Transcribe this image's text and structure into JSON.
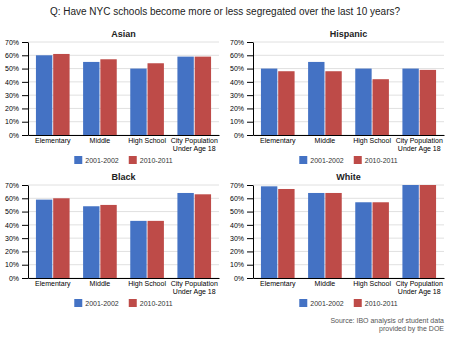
{
  "title": "Q: Have NYC schools become more or less segregated over the last 10 years?",
  "annotations": [
    "Source: IBO analysis of student data\nprovided by the DOE"
  ],
  "chart_data": [
    {
      "type": "bar",
      "title": "Asian",
      "categories": [
        "Elementary",
        "Middle",
        "High School",
        "City Population\nUnder Age 18"
      ],
      "series": [
        {
          "name": "2001-2002",
          "color": "#4472C4",
          "values": [
            60,
            55,
            50,
            59
          ]
        },
        {
          "name": "2010-2011",
          "color": "#BE4B48",
          "values": [
            61,
            57,
            54,
            59
          ]
        }
      ],
      "ylim": [
        0,
        70
      ],
      "yticks": [
        {
          "value": 0,
          "label": "0%"
        },
        {
          "value": 10,
          "label": "10%"
        },
        {
          "value": 20,
          "label": "20%"
        },
        {
          "value": 30,
          "label": "30%"
        },
        {
          "value": 40,
          "label": "40%"
        },
        {
          "value": 50,
          "label": "50%"
        },
        {
          "value": 60,
          "label": "60%"
        },
        {
          "value": 70,
          "label": "70%"
        }
      ],
      "grid": true,
      "legend": "bottom"
    },
    {
      "type": "bar",
      "title": "Hispanic",
      "categories": [
        "Elementary",
        "Middle",
        "High School",
        "City Population\nUnder Age 18"
      ],
      "series": [
        {
          "name": "2001-2002",
          "color": "#4472C4",
          "values": [
            50,
            55,
            50,
            50
          ]
        },
        {
          "name": "2010-2011",
          "color": "#BE4B48",
          "values": [
            48,
            48,
            42,
            49
          ]
        }
      ],
      "ylim": [
        0,
        70
      ],
      "yticks": [
        {
          "value": 0,
          "label": "0%"
        },
        {
          "value": 10,
          "label": "10%"
        },
        {
          "value": 20,
          "label": "20%"
        },
        {
          "value": 30,
          "label": "30%"
        },
        {
          "value": 40,
          "label": "40%"
        },
        {
          "value": 50,
          "label": "50%"
        },
        {
          "value": 60,
          "label": "60%"
        },
        {
          "value": 70,
          "label": "70%"
        }
      ],
      "grid": true,
      "legend": "bottom"
    },
    {
      "type": "bar",
      "title": "Black",
      "categories": [
        "Elementary",
        "Middle",
        "High School",
        "City Population\nUnder Age 18"
      ],
      "series": [
        {
          "name": "2001-2002",
          "color": "#4472C4",
          "values": [
            59,
            54,
            43,
            64
          ]
        },
        {
          "name": "2010-2011",
          "color": "#BE4B48",
          "values": [
            60,
            55,
            43,
            63
          ]
        }
      ],
      "ylim": [
        0,
        70
      ],
      "yticks": [
        {
          "value": 0,
          "label": "0%"
        },
        {
          "value": 10,
          "label": "10%"
        },
        {
          "value": 20,
          "label": "20%"
        },
        {
          "value": 30,
          "label": "30%"
        },
        {
          "value": 40,
          "label": "40%"
        },
        {
          "value": 50,
          "label": "50%"
        },
        {
          "value": 60,
          "label": "60%"
        },
        {
          "value": 70,
          "label": "70%"
        }
      ],
      "grid": true,
      "legend": "bottom"
    },
    {
      "type": "bar",
      "title": "White",
      "categories": [
        "Elementary",
        "Middle",
        "High School",
        "City Population\nUnder Age 18"
      ],
      "series": [
        {
          "name": "2001-2002",
          "color": "#4472C4",
          "values": [
            69,
            64,
            57,
            70
          ]
        },
        {
          "name": "2010-2011",
          "color": "#BE4B48",
          "values": [
            67,
            64,
            57,
            70
          ]
        }
      ],
      "ylim": [
        0,
        70
      ],
      "yticks": [
        {
          "value": 0,
          "label": "0%"
        },
        {
          "value": 10,
          "label": "10%"
        },
        {
          "value": 20,
          "label": "20%"
        },
        {
          "value": 30,
          "label": "30%"
        },
        {
          "value": 40,
          "label": "40%"
        },
        {
          "value": 50,
          "label": "50%"
        },
        {
          "value": 60,
          "label": "60%"
        },
        {
          "value": 70,
          "label": "70%"
        }
      ],
      "grid": true,
      "legend": "bottom"
    }
  ]
}
